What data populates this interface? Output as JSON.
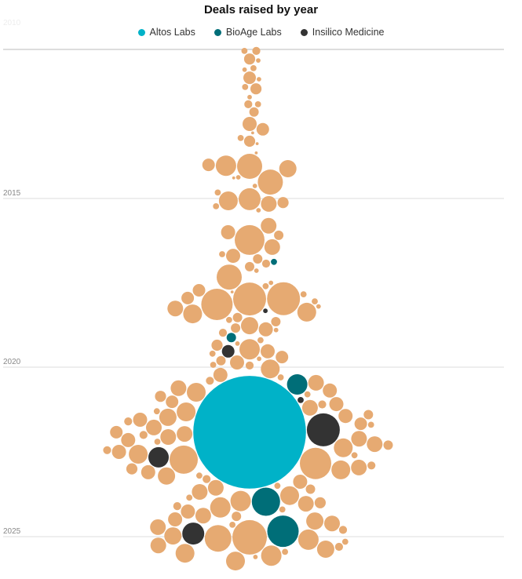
{
  "chart_data": {
    "type": "scatter",
    "subtype": "beeswarm bubble",
    "title": "Deals raised by year",
    "xlabel": "",
    "ylabel": "",
    "y_ticks": [
      "2010",
      "2015",
      "2020",
      "2025"
    ],
    "ylim": [
      2010,
      2026
    ],
    "size_unit": "deal amount (estimated, $M)",
    "grid": true,
    "legend_placement": "top-center",
    "legend": [
      {
        "label": "Altos Labs",
        "color": "#00B2C8"
      },
      {
        "label": "BioAge Labs",
        "color": "#006E78"
      },
      {
        "label": "Insilico Medicine",
        "color": "#333333"
      }
    ],
    "other_color": "#E6AA72",
    "company_index_note": "0=other, 1=Altos Labs, 2=BioAge Labs, 3=Insilico Medicine",
    "deals": [
      [
        2010.05,
        15,
        0
      ],
      [
        2010.05,
        9,
        0
      ],
      [
        2010.32,
        29,
        0
      ],
      [
        2010.37,
        5,
        0
      ],
      [
        2010.63,
        9,
        0
      ],
      [
        2010.68,
        5,
        0
      ],
      [
        2010.95,
        37,
        0
      ],
      [
        2011.0,
        5,
        0
      ],
      [
        2011.26,
        9,
        0
      ],
      [
        2011.32,
        29,
        0
      ],
      [
        2011.6,
        5,
        0
      ],
      [
        2011.84,
        9,
        0
      ],
      [
        2011.84,
        15,
        0
      ],
      [
        2012.1,
        21,
        0
      ],
      [
        2012.5,
        47,
        0
      ],
      [
        2012.68,
        37,
        0
      ],
      [
        2012.8,
        2,
        0
      ],
      [
        2012.97,
        9,
        0
      ],
      [
        2013.08,
        29,
        0
      ],
      [
        2013.16,
        2,
        0
      ],
      [
        2013.47,
        2,
        0
      ],
      [
        2013.9,
        98,
        0
      ],
      [
        2013.92,
        149,
        0
      ],
      [
        2014.0,
        70,
        0
      ],
      [
        2013.87,
        37,
        0
      ],
      [
        2014.29,
        5,
        0
      ],
      [
        2014.31,
        2,
        0
      ],
      [
        2014.45,
        149,
        0
      ],
      [
        2014.58,
        5,
        0
      ],
      [
        2014.8,
        9,
        0
      ],
      [
        2015.02,
        114,
        0
      ],
      [
        2015.07,
        84,
        0
      ],
      [
        2015.12,
        29,
        0
      ],
      [
        2015.16,
        58,
        0
      ],
      [
        2015.23,
        9,
        0
      ],
      [
        2015.35,
        5,
        0
      ],
      [
        2015.81,
        58,
        0
      ],
      [
        2016.0,
        47,
        0
      ],
      [
        2016.09,
        21,
        0
      ],
      [
        2016.23,
        210,
        0
      ],
      [
        2016.44,
        58,
        0
      ],
      [
        2016.7,
        47,
        0
      ],
      [
        2016.65,
        9,
        0
      ],
      [
        2016.79,
        21,
        0
      ],
      [
        2017.02,
        21,
        0
      ],
      [
        2017.14,
        5,
        0
      ],
      [
        2016.88,
        9,
        2
      ],
      [
        2016.93,
        15,
        0
      ],
      [
        2017.33,
        149,
        0
      ],
      [
        2017.72,
        37,
        0
      ],
      [
        2017.77,
        2,
        0
      ],
      [
        2017.84,
        9,
        0
      ],
      [
        2017.95,
        37,
        0
      ],
      [
        2017.98,
        257,
        0
      ],
      [
        2017.97,
        257,
        0
      ],
      [
        2018.05,
        9,
        0
      ],
      [
        2018.14,
        233,
        0
      ],
      [
        2018.26,
        58,
        0
      ],
      [
        2018.37,
        84,
        0
      ],
      [
        2018.42,
        84,
        0
      ],
      [
        2018.33,
        5,
        3
      ],
      [
        2018.53,
        21,
        0
      ],
      [
        2018.65,
        21,
        0
      ],
      [
        2018.77,
        70,
        0
      ],
      [
        2018.84,
        21,
        0
      ],
      [
        2018.88,
        47,
        0
      ],
      [
        2018.98,
        15,
        0
      ],
      [
        2019.12,
        21,
        2
      ],
      [
        2019.35,
        29,
        0
      ],
      [
        2019.47,
        98,
        0
      ],
      [
        2019.53,
        47,
        0
      ],
      [
        2019.53,
        37,
        3
      ],
      [
        2019.7,
        37,
        0
      ],
      [
        2019.81,
        21,
        0
      ],
      [
        2019.86,
        47,
        0
      ],
      [
        2019.93,
        9,
        0
      ],
      [
        2017.5,
        5,
        0
      ],
      [
        2017.6,
        9,
        0
      ],
      [
        2018.2,
        5,
        0
      ],
      [
        2018.6,
        9,
        0
      ],
      [
        2018.9,
        5,
        0
      ],
      [
        2019.2,
        9,
        0
      ],
      [
        2019.3,
        5,
        0
      ],
      [
        2019.6,
        9,
        0
      ],
      [
        2019.75,
        5,
        0
      ],
      [
        2019.95,
        15,
        0
      ],
      [
        2020.05,
        84,
        0
      ],
      [
        2020.23,
        47,
        0
      ],
      [
        2020.46,
        58,
        0
      ],
      [
        2020.51,
        98,
        2
      ],
      [
        2020.62,
        58,
        0
      ],
      [
        2020.69,
        47,
        0
      ],
      [
        2020.74,
        84,
        0
      ],
      [
        2020.86,
        29,
        0
      ],
      [
        2020.97,
        9,
        3
      ],
      [
        2021.02,
        37,
        0
      ],
      [
        2021.09,
        47,
        0
      ],
      [
        2021.2,
        58,
        0
      ],
      [
        2021.32,
        84,
        0
      ],
      [
        2021.44,
        47,
        0
      ],
      [
        2021.48,
        70,
        0
      ],
      [
        2021.55,
        47,
        0
      ],
      [
        2021.67,
        37,
        0
      ],
      [
        2021.78,
        58,
        0
      ],
      [
        2021.85,
        257,
        3
      ],
      [
        2021.92,
        3000,
        1
      ],
      [
        2021.92,
        37,
        0
      ],
      [
        2021.97,
        58,
        0
      ],
      [
        2022.06,
        58,
        0
      ],
      [
        2022.11,
        58,
        0
      ],
      [
        2022.15,
        47,
        0
      ],
      [
        2022.27,
        58,
        0
      ],
      [
        2022.38,
        84,
        0
      ],
      [
        2022.5,
        47,
        0
      ],
      [
        2022.57,
        84,
        0
      ],
      [
        2022.66,
        98,
        3
      ],
      [
        2022.73,
        189,
        0
      ],
      [
        2022.84,
        233,
        0
      ],
      [
        2022.96,
        58,
        0
      ],
      [
        2023.03,
        84,
        0
      ],
      [
        2023.1,
        47,
        0
      ],
      [
        2023.21,
        70,
        0
      ],
      [
        2023.38,
        47,
        0
      ],
      [
        2023.56,
        58,
        0
      ],
      [
        2023.68,
        58,
        0
      ],
      [
        2023.79,
        84,
        0
      ],
      [
        2023.95,
        98,
        0
      ],
      [
        2023.97,
        189,
        2
      ],
      [
        2024.03,
        58,
        0
      ],
      [
        2024.14,
        98,
        0
      ],
      [
        2024.26,
        47,
        0
      ],
      [
        2024.38,
        58,
        0
      ],
      [
        2024.49,
        47,
        0
      ],
      [
        2024.54,
        70,
        0
      ],
      [
        2024.61,
        58,
        0
      ],
      [
        2024.72,
        58,
        0
      ],
      [
        2024.84,
        233,
        2
      ],
      [
        2024.91,
        114,
        3
      ],
      [
        2024.98,
        70,
        0
      ],
      [
        2025.02,
        282,
        0
      ],
      [
        2025.05,
        168,
        0
      ],
      [
        2025.09,
        98,
        0
      ],
      [
        2025.26,
        58,
        0
      ],
      [
        2025.37,
        70,
        0
      ],
      [
        2025.49,
        84,
        0
      ],
      [
        2025.56,
        98,
        0
      ],
      [
        2025.72,
        84,
        0
      ],
      [
        2020.3,
        9,
        0
      ],
      [
        2020.4,
        15,
        0
      ],
      [
        2020.8,
        9,
        0
      ],
      [
        2021.1,
        15,
        0
      ],
      [
        2021.3,
        9,
        0
      ],
      [
        2021.6,
        15,
        0
      ],
      [
        2021.7,
        9,
        0
      ],
      [
        2022.0,
        15,
        0
      ],
      [
        2022.2,
        9,
        0
      ],
      [
        2022.45,
        15,
        0
      ],
      [
        2022.6,
        9,
        0
      ],
      [
        2022.9,
        15,
        0
      ],
      [
        2023.2,
        9,
        0
      ],
      [
        2023.3,
        15,
        0
      ],
      [
        2023.5,
        9,
        0
      ],
      [
        2023.6,
        21,
        0
      ],
      [
        2023.85,
        9,
        0
      ],
      [
        2024.1,
        15,
        0
      ],
      [
        2024.2,
        9,
        0
      ],
      [
        2024.4,
        21,
        0
      ],
      [
        2024.65,
        9,
        0
      ],
      [
        2024.8,
        15,
        0
      ],
      [
        2025.15,
        9,
        0
      ],
      [
        2025.3,
        15,
        0
      ],
      [
        2025.45,
        9,
        0
      ],
      [
        2025.6,
        5,
        0
      ],
      [
        2021.4,
        21,
        0
      ],
      [
        2022.3,
        21,
        0
      ],
      [
        2023.0,
        29,
        0
      ],
      [
        2024.0,
        29,
        0
      ]
    ]
  }
}
